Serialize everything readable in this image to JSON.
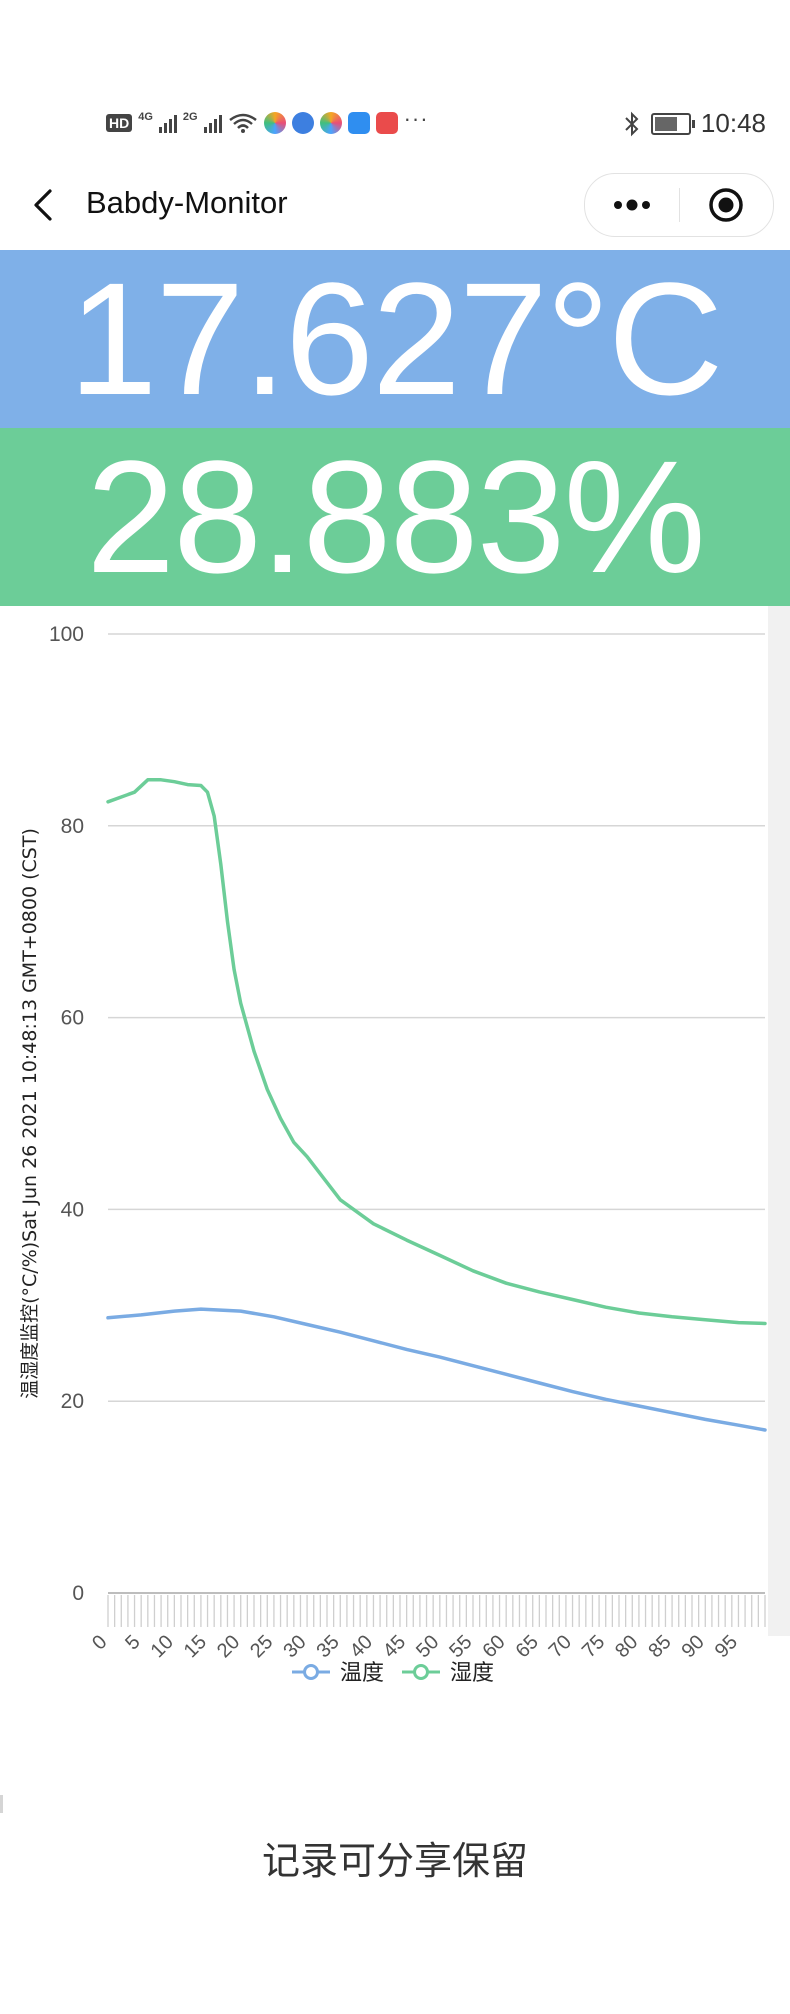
{
  "status_bar": {
    "hd_label": "HD",
    "net1_label": "4G",
    "net2_label": "2G",
    "time": "10:48",
    "more": "···",
    "icons": [
      "hd-icon",
      "signal-4g-icon",
      "signal-2g-icon",
      "wifi-icon",
      "app-icon",
      "app-icon",
      "app-icon",
      "app-icon",
      "app-icon",
      "bluetooth-icon",
      "battery-icon"
    ]
  },
  "nav": {
    "title": "Babdy-Monitor",
    "icons": [
      "back-icon",
      "more-icon",
      "record-icon"
    ]
  },
  "readout": {
    "temperature": "17.627°C",
    "humidity": "28.883%"
  },
  "colors": {
    "temp_bg": "#7fb0e8",
    "hum_bg": "#6ccd98",
    "temp_line": "#7aabe3",
    "hum_line": "#6ccd98",
    "grid": "#d6d6d6",
    "axis_text": "#555555"
  },
  "chart_data": {
    "type": "line",
    "ylabel": "温湿度监控(°C/%)Sat Jun 26 2021 10:48:13 GMT+0800 (CST)",
    "ylim": [
      0,
      100
    ],
    "yticks": [
      0,
      20,
      40,
      60,
      80,
      100
    ],
    "xlim": [
      0,
      99
    ],
    "xticks": [
      0,
      5,
      10,
      15,
      20,
      25,
      30,
      35,
      40,
      45,
      50,
      55,
      60,
      65,
      70,
      75,
      80,
      85,
      90,
      95
    ],
    "grid": true,
    "legend_position": "bottom",
    "series": [
      {
        "name": "温度",
        "x": [
          0,
          5,
          10,
          14,
          20,
          25,
          30,
          35,
          40,
          45,
          50,
          55,
          60,
          65,
          70,
          75,
          80,
          85,
          90,
          95,
          99
        ],
        "y": [
          28.7,
          29.0,
          29.4,
          29.6,
          29.4,
          28.8,
          28.0,
          27.2,
          26.3,
          25.4,
          24.6,
          23.7,
          22.8,
          21.9,
          21.0,
          20.2,
          19.5,
          18.8,
          18.1,
          17.5,
          17.0
        ]
      },
      {
        "name": "湿度",
        "x": [
          0,
          4,
          6,
          8,
          10,
          12,
          14,
          15,
          16,
          17,
          18,
          19,
          20,
          22,
          24,
          26,
          28,
          30,
          35,
          40,
          45,
          50,
          55,
          60,
          65,
          70,
          75,
          80,
          85,
          90,
          95,
          99
        ],
        "y": [
          82.5,
          83.5,
          84.8,
          84.8,
          84.6,
          84.3,
          84.2,
          83.5,
          81.0,
          76.0,
          70.0,
          65.0,
          61.5,
          56.5,
          52.5,
          49.5,
          47.0,
          45.5,
          41.0,
          38.5,
          36.8,
          35.2,
          33.6,
          32.3,
          31.4,
          30.6,
          29.8,
          29.2,
          28.8,
          28.5,
          28.2,
          28.1
        ]
      }
    ]
  },
  "footer": {
    "text": "记录可分享保留"
  }
}
